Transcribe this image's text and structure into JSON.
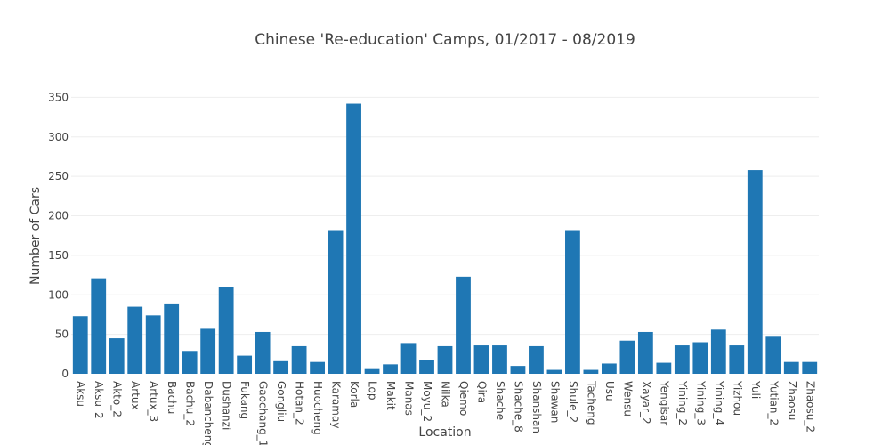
{
  "chart_data": {
    "type": "bar",
    "title": "Chinese 'Re-education' Camps, 01/2017 - 08/2019",
    "xlabel": "Location",
    "ylabel": "Number of Cars",
    "ylim": [
      0,
      355
    ],
    "yticks": [
      0,
      50,
      100,
      150,
      200,
      250,
      300,
      350
    ],
    "grid": true,
    "colors": {
      "bar": "#1f77b4",
      "grid": "#eeeeee",
      "text": "#444444"
    },
    "categories": [
      "Aksu",
      "Aksu_2",
      "Akto_2",
      "Artux",
      "Artux_3",
      "Bachu",
      "Bachu_2",
      "Dabancheng",
      "Dushanzi",
      "Fukang",
      "Gaochang_1",
      "Gongliu",
      "Hotan_2",
      "Huocheng",
      "Karamay",
      "Korla",
      "Lop",
      "Makit",
      "Manas",
      "Moyu_2",
      "Nilka",
      "Qiemo",
      "Qira",
      "Shache",
      "Shache_8",
      "Shanshan",
      "Shawan",
      "Shule_2",
      "Tacheng",
      "Usu",
      "Wensu",
      "Xayar_2",
      "Yengisar",
      "Yining_2",
      "Yining_3",
      "Yining_4",
      "Yizhou",
      "Yuli",
      "Yutian_2",
      "Zhaosu",
      "Zhaosu_2"
    ],
    "values": [
      73,
      121,
      45,
      85,
      74,
      88,
      29,
      57,
      110,
      23,
      53,
      16,
      35,
      15,
      182,
      342,
      6,
      12,
      39,
      17,
      35,
      123,
      36,
      36,
      10,
      35,
      5,
      182,
      5,
      13,
      42,
      53,
      14,
      36,
      40,
      56,
      36,
      258,
      47,
      15,
      15
    ]
  }
}
